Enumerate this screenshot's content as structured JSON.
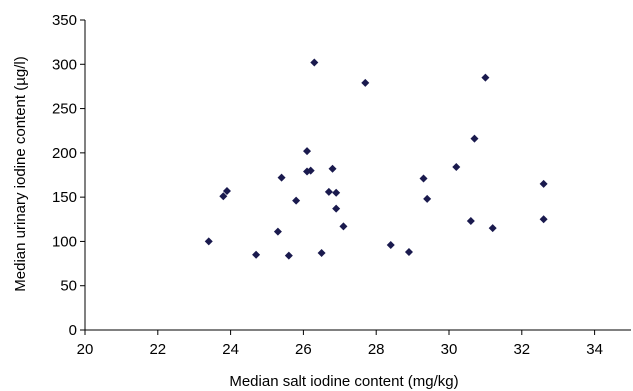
{
  "chart_data": {
    "type": "scatter",
    "title": "",
    "xlabel": "Median salt iodine content (mg/kg)",
    "ylabel": "Median urinary iodine content (µg/l)",
    "xlim": [
      20,
      35
    ],
    "ylim": [
      0,
      350
    ],
    "x_ticks": [
      20,
      22,
      24,
      26,
      28,
      30,
      32,
      34
    ],
    "y_ticks": [
      0,
      50,
      100,
      150,
      200,
      250,
      300,
      350
    ],
    "x_tick_labels": [
      "20",
      "22",
      "24",
      "26",
      "28",
      "30",
      "32",
      "34"
    ],
    "y_tick_labels": [
      "0",
      "50",
      "100",
      "150",
      "200",
      "250",
      "300",
      "350"
    ],
    "grid": false,
    "marker": "diamond",
    "marker_color": "#1a1a4e",
    "series": [
      {
        "x": [
          23.4,
          23.8,
          23.9,
          24.7,
          25.3,
          25.4,
          25.6,
          25.8,
          26.1,
          26.1,
          26.2,
          26.3,
          26.5,
          26.7,
          26.8,
          26.9,
          26.9,
          27.1,
          27.7,
          28.4,
          28.9,
          29.3,
          29.4,
          30.2,
          30.6,
          30.7,
          31.0,
          31.2,
          32.6,
          32.6
        ],
        "y": [
          100,
          151,
          157,
          85,
          111,
          172,
          84,
          146,
          202,
          179,
          180,
          302,
          87,
          156,
          182,
          155,
          137,
          117,
          279,
          96,
          88,
          171,
          148,
          184,
          123,
          216,
          285,
          115,
          165,
          125
        ]
      }
    ]
  }
}
